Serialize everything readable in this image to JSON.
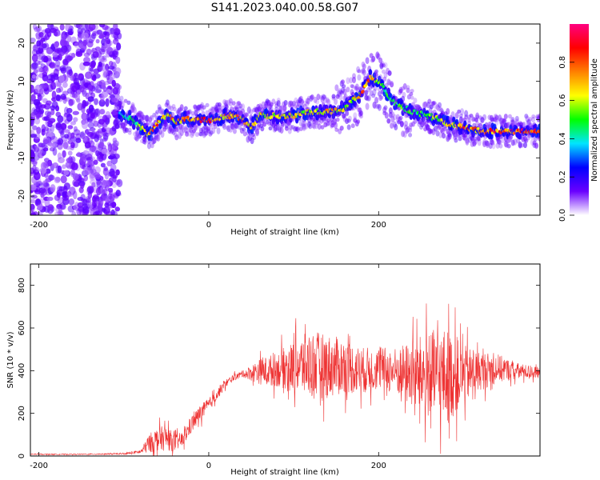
{
  "title": "S141.2023.040.00.58.G07",
  "chart_data": [
    {
      "type": "heatmap",
      "xlabel": "Height of straight line (km)",
      "ylabel": "Frequency (Hz)",
      "xlim": [
        -210,
        390
      ],
      "ylim": [
        -25,
        25
      ],
      "x_ticks": [
        -200,
        0,
        200
      ],
      "x_tick_labels": [
        "-200",
        "0",
        "200"
      ],
      "y_ticks": [
        -20,
        -10,
        0,
        10,
        20
      ],
      "y_tick_labels": [
        "-20",
        "-10",
        "0",
        "10",
        "20"
      ],
      "noise_region": {
        "x_from": -210,
        "x_to": -105
      },
      "ridge": {
        "x": [
          -105,
          -90,
          -80,
          -70,
          -60,
          -50,
          -45,
          -40,
          -30,
          -20,
          -10,
          0,
          10,
          20,
          30,
          40,
          45,
          50,
          60,
          80,
          100,
          120,
          140,
          160,
          170,
          180,
          185,
          190,
          200,
          210,
          220,
          240,
          260,
          280,
          300,
          320,
          340,
          360,
          390
        ],
        "freq": [
          2,
          0,
          -2,
          -4,
          -1,
          1,
          1,
          -1,
          0,
          0,
          0,
          0,
          0,
          1,
          1,
          0,
          -1,
          -2,
          1,
          1,
          1,
          2,
          2,
          3,
          5,
          7,
          9,
          11,
          10,
          7,
          4,
          2,
          1,
          -1,
          -2,
          -3,
          -3,
          -3,
          -3
        ],
        "amplitude": [
          0.4,
          0.5,
          0.6,
          0.8,
          0.85,
          0.8,
          0.75,
          0.8,
          0.85,
          0.9,
          0.9,
          0.95,
          0.85,
          0.8,
          0.85,
          0.8,
          0.75,
          0.8,
          0.7,
          0.7,
          0.7,
          0.7,
          0.75,
          0.7,
          0.7,
          0.8,
          0.85,
          0.8,
          0.6,
          0.55,
          0.55,
          0.55,
          0.6,
          0.7,
          0.85,
          0.85,
          0.9,
          0.95,
          0.95
        ]
      },
      "colorbar": {
        "label": "Normalized spectral amplitude",
        "range": [
          0,
          1
        ],
        "ticks": [
          0.0,
          0.2,
          0.4,
          0.6,
          0.8
        ],
        "tick_labels": [
          "0.0",
          "0.2",
          "0.4",
          "0.6",
          "0.8"
        ],
        "colors": [
          "#ffffff",
          "#6a00ff",
          "#0000ff",
          "#00e5ff",
          "#00ff00",
          "#ffff00",
          "#ff8000",
          "#ff0000",
          "#ff0080"
        ]
      },
      "grid": false
    },
    {
      "type": "line",
      "xlabel": "Height of straight line (km)",
      "ylabel": "SNR (10 * v/v)",
      "xlim": [
        -210,
        390
      ],
      "ylim": [
        0,
        900
      ],
      "x_ticks": [
        -200,
        0,
        200
      ],
      "x_tick_labels": [
        "-200",
        "0",
        "200"
      ],
      "y_ticks": [
        0,
        200,
        400,
        600,
        800
      ],
      "y_tick_labels": [
        "0",
        "200",
        "400",
        "600",
        "800"
      ],
      "series": [
        {
          "color": "#ee3333",
          "x": [
            -210,
            -150,
            -100,
            -80,
            -70,
            -60,
            -50,
            -40,
            -30,
            -20,
            -10,
            0,
            10,
            20,
            30,
            40,
            60,
            80,
            100,
            120,
            140,
            160,
            180,
            200,
            220,
            240,
            260,
            280,
            300,
            320,
            340,
            360,
            390
          ],
          "y": [
            8,
            8,
            10,
            20,
            60,
            80,
            85,
            60,
            80,
            150,
            200,
            240,
            290,
            340,
            370,
            385,
            395,
            405,
            420,
            430,
            420,
            420,
            400,
            410,
            400,
            380,
            380,
            370,
            380,
            400,
            410,
            400,
            390
          ],
          "spread": [
            2,
            2,
            3,
            10,
            45,
            55,
            60,
            40,
            35,
            40,
            40,
            30,
            25,
            20,
            15,
            15,
            60,
            80,
            120,
            160,
            150,
            130,
            110,
            100,
            110,
            160,
            210,
            230,
            140,
            90,
            70,
            40,
            25
          ]
        }
      ],
      "grid": false
    }
  ]
}
